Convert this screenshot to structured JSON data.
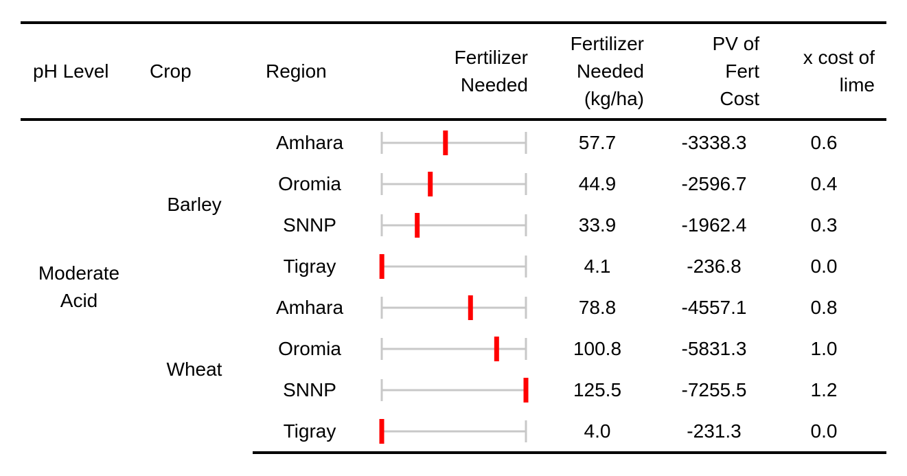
{
  "header": {
    "ph_level": "pH Level",
    "crop": "Crop",
    "region": "Region",
    "fertilizer_bar": [
      "Fertilizer",
      "Needed"
    ],
    "fertilizer_kgha": [
      "Fertilizer",
      "Needed",
      "(kg/ha)"
    ],
    "pv_fert_cost": [
      "PV of",
      "Fert",
      "Cost"
    ],
    "x_cost_lime": [
      "x cost of",
      "lime"
    ]
  },
  "groups": {
    "ph_level": [
      "Moderate",
      "Acid"
    ],
    "crops": [
      "Barley",
      "Wheat"
    ]
  },
  "colors": {
    "bar_marker": "#ff0000",
    "bar_track": "#c8c8c8",
    "rule": "#000000"
  },
  "chart_data": {
    "type": "table",
    "columns": [
      "pH Level",
      "Crop",
      "Region",
      "Fertilizer Needed",
      "Fertilizer Needed (kg/ha)",
      "PV of Fert Cost",
      "x cost of lime"
    ],
    "bar_range": [
      4.0,
      125.5
    ],
    "rows": [
      {
        "ph": "Moderate Acid",
        "crop": "Barley",
        "region": "Amhara",
        "fert": "57.7",
        "fert_value": 57.7,
        "pv": "-3338.3",
        "lime": "0.6"
      },
      {
        "ph": "Moderate Acid",
        "crop": "Barley",
        "region": "Oromia",
        "fert": "44.9",
        "fert_value": 44.9,
        "pv": "-2596.7",
        "lime": "0.4"
      },
      {
        "ph": "Moderate Acid",
        "crop": "Barley",
        "region": "SNNP",
        "fert": "33.9",
        "fert_value": 33.9,
        "pv": "-1962.4",
        "lime": "0.3"
      },
      {
        "ph": "Moderate Acid",
        "crop": "Barley",
        "region": "Tigray",
        "fert": "4.1",
        "fert_value": 4.1,
        "pv": "-236.8",
        "lime": "0.0"
      },
      {
        "ph": "Moderate Acid",
        "crop": "Wheat",
        "region": "Amhara",
        "fert": "78.8",
        "fert_value": 78.8,
        "pv": "-4557.1",
        "lime": "0.8"
      },
      {
        "ph": "Moderate Acid",
        "crop": "Wheat",
        "region": "Oromia",
        "fert": "100.8",
        "fert_value": 100.8,
        "pv": "-5831.3",
        "lime": "1.0"
      },
      {
        "ph": "Moderate Acid",
        "crop": "Wheat",
        "region": "SNNP",
        "fert": "125.5",
        "fert_value": 125.5,
        "pv": "-7255.5",
        "lime": "1.2"
      },
      {
        "ph": "Moderate Acid",
        "crop": "Wheat",
        "region": "Tigray",
        "fert": "4.0",
        "fert_value": 4.0,
        "pv": "-231.3",
        "lime": "0.0"
      }
    ]
  }
}
